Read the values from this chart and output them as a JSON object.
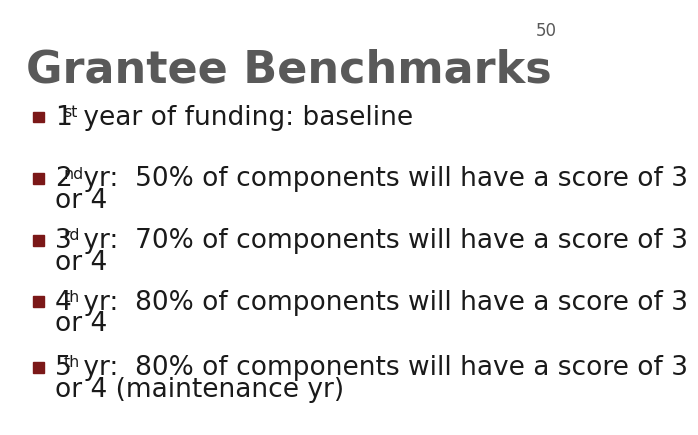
{
  "title": "Grantee Benchmarks",
  "slide_number": "50",
  "background_color": "#ffffff",
  "title_color": "#595959",
  "title_fontsize": 32,
  "bullet_color": "#7B1818",
  "text_color": "#1a1a1a",
  "number_color": "#595959",
  "slide_num_fontsize": 12,
  "bullet_fontsize": 19,
  "bullets": [
    {
      "prefix": "1",
      "superscript": "st",
      "main": " year of funding: baseline",
      "second_line": ""
    },
    {
      "prefix": "2",
      "superscript": "nd",
      "main": " yr:  50% of components will have a score of 3",
      "second_line": "or 4"
    },
    {
      "prefix": "3",
      "superscript": "rd",
      "main": " yr:  70% of components will have a score of 3",
      "second_line": "or 4"
    },
    {
      "prefix": "4",
      "superscript": "th",
      "main": " yr:  80% of components will have a score of 3",
      "second_line": "or 4"
    },
    {
      "prefix": "5",
      "superscript": "th",
      "main": " yr:  80% of components will have a score of 3",
      "second_line": "or 4 (maintenance yr)"
    }
  ]
}
